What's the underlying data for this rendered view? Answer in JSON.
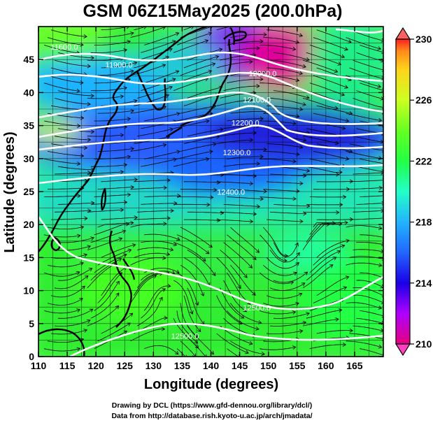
{
  "header": {
    "title": "GSM 06Z15May2025 (200.0hPa)"
  },
  "axes": {
    "xlabel": "Longitude (degrees)",
    "ylabel": "Latitude  (degrees)",
    "xlim": [
      110,
      170
    ],
    "ylim": [
      0,
      50
    ],
    "x_ticks": [
      "110",
      "115",
      "120",
      "125",
      "130",
      "135",
      "140",
      "145",
      "150",
      "155",
      "160",
      "165"
    ],
    "y_ticks": [
      "0",
      "5",
      "10",
      "15",
      "20",
      "25",
      "30",
      "35",
      "40",
      "45"
    ]
  },
  "colorbar": {
    "min": 210,
    "max": 230,
    "tick_labels": [
      "230",
      "226",
      "222",
      "218",
      "214",
      "210"
    ],
    "stops": [
      "#e6007e",
      "#b000ff",
      "#1a00e6",
      "#2266ff",
      "#22b4ff",
      "#22ffc8",
      "#22ff44",
      "#66ff22",
      "#ccff22",
      "#ffd51a",
      "#ff8c1a",
      "#ff2020"
    ],
    "end_colors": {
      "top": "#ff6060",
      "bottom": "#ff40c0"
    }
  },
  "contour_labels": [
    {
      "text": "11600.0",
      "lon": 114.5,
      "lat": 46.5
    },
    {
      "text": "11900.0",
      "lon": 124.0,
      "lat": 43.8
    },
    {
      "text": "12000.0",
      "lon": 149.0,
      "lat": 42.5
    },
    {
      "text": "12100.0",
      "lon": 148.0,
      "lat": 38.5
    },
    {
      "text": "12200.0",
      "lon": 146.0,
      "lat": 35.0
    },
    {
      "text": "12300.0",
      "lon": 144.5,
      "lat": 30.5
    },
    {
      "text": "12400.0",
      "lon": 143.5,
      "lat": 24.5
    },
    {
      "text": "12500.0",
      "lon": 148.0,
      "lat": 7.0
    },
    {
      "text": "12500.0",
      "lon": 135.5,
      "lat": 2.7
    }
  ],
  "credits": {
    "line1": "Drawing by DCL (https://www.gfd-dennou.org/library/dcl/)",
    "line2": "Data from http://database.rish.kyoto-u.ac.jp/arch/jmadata/"
  }
}
